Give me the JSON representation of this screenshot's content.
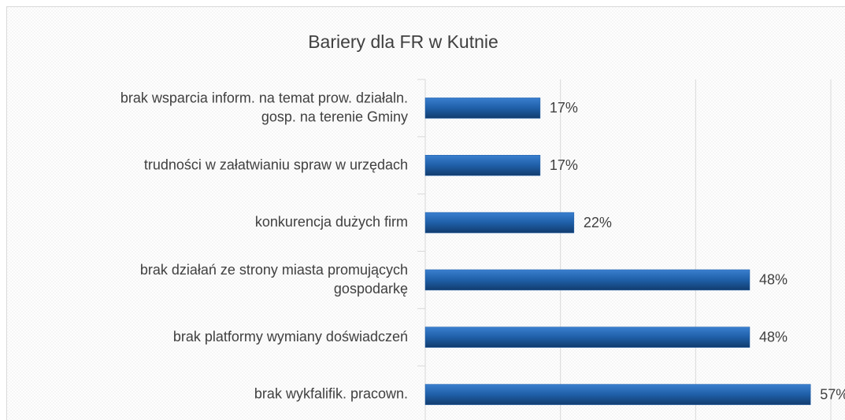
{
  "chart_data": {
    "type": "hbar",
    "title": "Bariery dla FR w Kutnie",
    "categories": [
      "brak wsparcia inform. na temat prow. działaln.\ngosp. na terenie Gminy",
      "trudności w załatwianiu spraw w urzędach",
      "konkurencja dużych firm",
      "brak działań ze strony miasta promujących\ngospodarkę",
      "brak platformy wymiany doświadczeń",
      "brak wykfalifik. pracown."
    ],
    "values": [
      17,
      17,
      22,
      48,
      48,
      57
    ],
    "value_labels": [
      "17%",
      "17%",
      "22%",
      "48%",
      "48%",
      "57%"
    ],
    "color": "#1f5fa8",
    "xlim": [
      0,
      60
    ],
    "xticks": [
      0,
      20,
      40,
      60
    ],
    "grid": true
  }
}
